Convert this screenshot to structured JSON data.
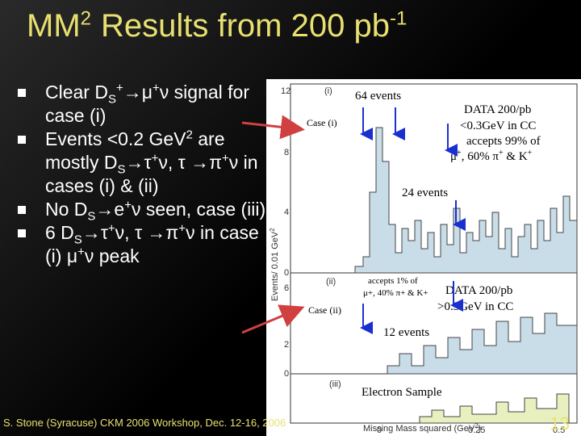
{
  "title": {
    "base": "MM",
    "sup": "2",
    "rest": "Results from 200 pb",
    "sup2": "-1"
  },
  "bullets": [
    {
      "parts": [
        "Clear D",
        "S",
        "+",
        "→μ",
        "+",
        "ν",
        " signal for case (i)"
      ]
    },
    {
      "text1": "Events <0.2 GeV",
      "sup": "2",
      "text2": " are mostly D",
      "sub": "S",
      "text3": "→τ",
      "sup3": "+",
      "text4": "ν, τ →π",
      "sup4": "+",
      "text5": "ν in cases (i) & (ii)"
    },
    {
      "text1": "No D",
      "sub": "S",
      "text2": "→e",
      "sup": "+",
      "text3": "ν seen, case (iii)"
    },
    {
      "text1": "6 D",
      "sub": "S",
      "text2": "→τ",
      "sup": "+",
      "text3": "ν, τ →π",
      "sup2": "+",
      "text4": "ν in case (i) μ",
      "sup3": "+",
      "text5": "ν peak"
    }
  ],
  "plot": {
    "ylabel": "Events/ 0.01 GeV",
    "ylabel_sup": "2",
    "xlabel": "Missing Mass squared (GeV",
    "xlabel_sup": "2",
    "xlabel_end": ")",
    "panel_labels": [
      "(i)",
      "(ii)",
      "(iii)"
    ],
    "case_i": "Case (i)",
    "case_ii": "Case (ii)",
    "events_64": "64 events",
    "events_24": "24 events",
    "events_12": "12 events",
    "data_upper_1": "DATA 200/pb",
    "data_upper_2": "<0.3GeV in CC",
    "data_upper_3": "accepts 99% of",
    "data_upper_4a": "μ",
    "data_upper_4b": "+",
    "data_upper_4c": ", 60% π",
    "data_upper_4d": "+",
    "data_upper_4e": " & K",
    "data_upper_4f": "+",
    "accepts_1a": "accepts 1% of",
    "accepts_2": "μ+, 40% π+ & K+",
    "data_lower_1": "DATA 200/pb",
    "data_lower_2": ">0.3GeV in CC",
    "electron": "Electron Sample",
    "yticks_i": [
      "12",
      "8",
      "4",
      "0"
    ],
    "yticks_ii": [
      "6",
      "4",
      "2",
      "0"
    ],
    "xticks": [
      "0",
      "0.25",
      "0.5"
    ]
  },
  "footer": "S. Stone (Syracuse) CKM 2006 Workshop, Dec. 12-16, 2006",
  "page_number": "13",
  "colors": {
    "title": "#e8e070",
    "text": "#ffffff",
    "arrow_blue": "#1a2fd0",
    "arrow_red": "#d04040"
  }
}
